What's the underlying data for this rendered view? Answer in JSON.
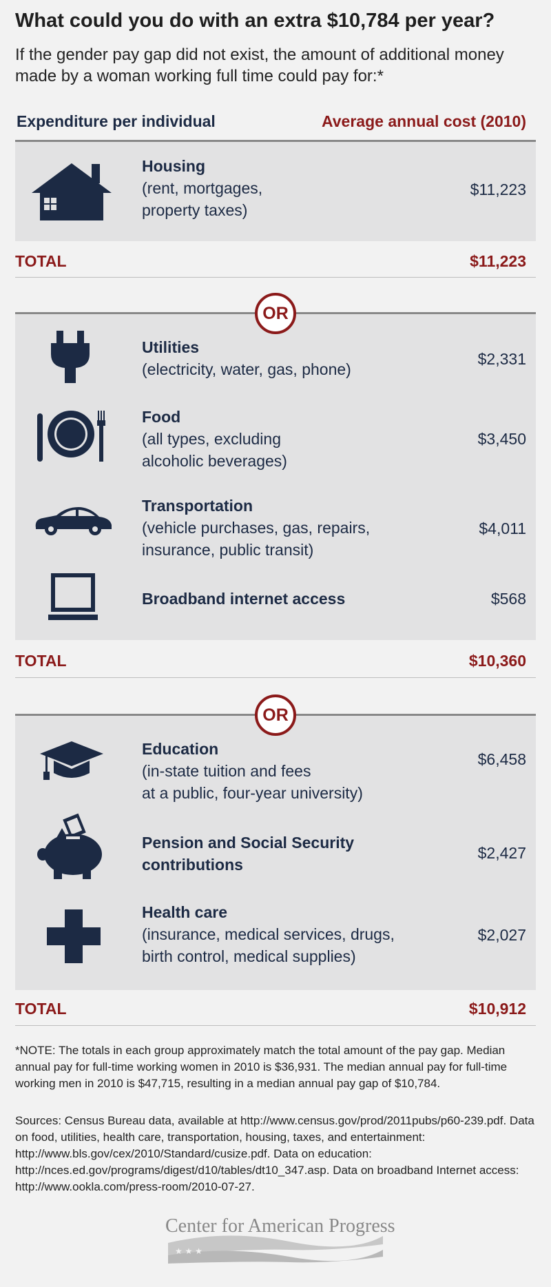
{
  "header": {
    "title": "What could you do with an extra $10,784 per year?",
    "subtitle": "If the gender pay gap did not exist, the amount of additional money made by a woman working full time could pay for:*"
  },
  "columns": {
    "left": "Expenditure per individual",
    "right": "Average annual cost (2010)"
  },
  "or_label": "OR",
  "total_label": "TOTAL",
  "group1": {
    "items": [
      {
        "name": "Housing",
        "line1": "(rent, mortgages,",
        "line2": "property taxes)",
        "cost": "$11,223",
        "icon": "house-icon"
      }
    ],
    "total": "$11,223"
  },
  "group2": {
    "items": [
      {
        "name": "Utilities",
        "line1": "(electricity, water, gas, phone)",
        "cost": "$2,331",
        "icon": "plug-icon"
      },
      {
        "name": "Food",
        "line1": "(all types, excluding",
        "line2": "alcoholic beverages)",
        "cost": "$3,450",
        "icon": "plate-icon"
      },
      {
        "name": "Transportation",
        "line1": "(vehicle purchases, gas, repairs,",
        "line2": "insurance, public transit)",
        "cost": "$4,011",
        "icon": "car-icon"
      },
      {
        "name": "Broadband internet access",
        "cost": "$568",
        "icon": "computer-icon"
      }
    ],
    "total": "$10,360"
  },
  "group3": {
    "items": [
      {
        "name": "Education",
        "line1": "(in-state tuition and fees",
        "line2": "at a public, four-year university)",
        "cost": "$6,458",
        "icon": "graduation-cap-icon"
      },
      {
        "name": "Pension and Social Security",
        "name2": "contributions",
        "cost": "$2,427",
        "icon": "piggy-bank-icon"
      },
      {
        "name": "Health care",
        "line1": "(insurance, medical services, drugs,",
        "line2": "birth control, medical supplies)",
        "cost": "$2,027",
        "icon": "medical-cross-icon"
      }
    ],
    "total": "$10,912"
  },
  "footnotes": {
    "note": "*NOTE: The totals in each group approximately match the total amount of the pay gap. Median annual pay for full-time working women in 2010 is $36,931. The median annual pay for full-time working men in 2010 is $47,715, resulting in a median annual pay gap of $10,784.",
    "sources": "Sources: Census Bureau data, available at http://www.census.gov/prod/2011pubs/p60-239.pdf. Data on food, utilities, health care, transportation, housing, taxes, and entertainment: http://www.bls.gov/cex/2010/Standard/cusize.pdf. Data on education: http://nces.ed.gov/programs/digest/d10/tables/dt10_347.asp. Data on broadband Internet access: http://www.ookla.com/press-room/2010-07-27."
  },
  "logo": {
    "text": "Center for American Progress"
  },
  "colors": {
    "navy": "#1c2a44",
    "accent": "#8b1a1a",
    "panel": "#e2e2e3",
    "background": "#f2f2f2"
  }
}
